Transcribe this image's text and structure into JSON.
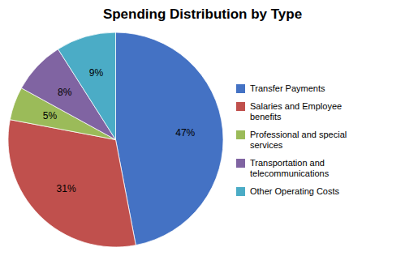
{
  "chart_data": {
    "type": "pie",
    "title": "Spending Distribution by Type",
    "categories": [
      "Transfer Payments",
      "Salaries and Employee\nbenefits",
      "Professional and special\nservices",
      "Transportation and\ntelecommunications",
      "Other Operating Costs"
    ],
    "values": [
      47,
      31,
      5,
      8,
      9
    ],
    "value_labels": [
      "47%",
      "31%",
      "5%",
      "8%",
      "9%"
    ],
    "colors": [
      "#4472C4",
      "#C0504D",
      "#9BBB59",
      "#8064A2",
      "#4BACC6"
    ],
    "data_labels": true,
    "legend": "right"
  }
}
